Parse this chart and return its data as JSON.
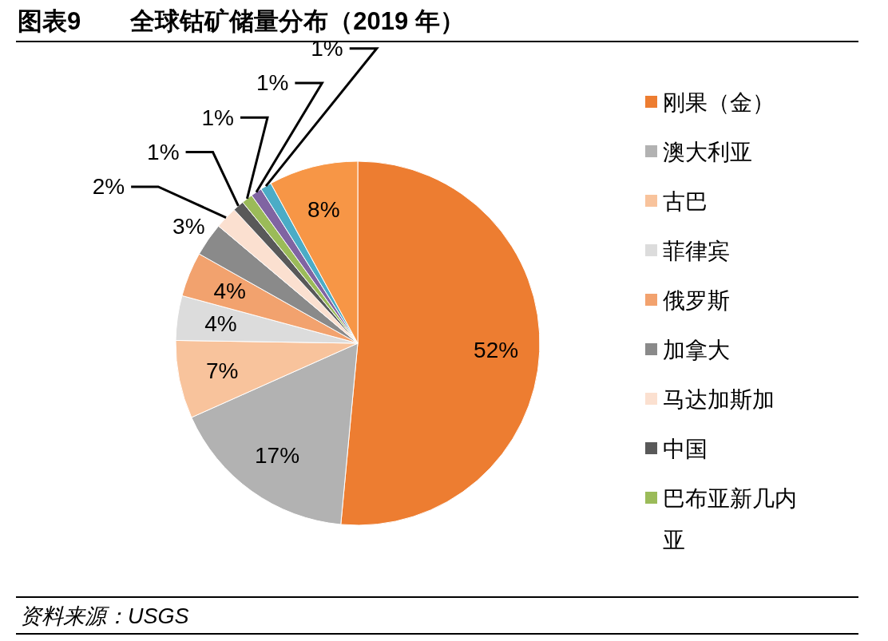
{
  "chart_data": {
    "type": "pie",
    "title": "图表9　　全球钴矿储量分布（2019 年）",
    "categories": [
      "刚果（金）",
      "澳大利亚",
      "古巴",
      "菲律宾",
      "俄罗斯",
      "加拿大",
      "马达加斯加",
      "中国",
      "巴布亚新几内亚",
      null,
      null,
      null
    ],
    "values": [
      52,
      17,
      7,
      4,
      4,
      3,
      2,
      1,
      1,
      1,
      1,
      8
    ],
    "value_labels": [
      "52%",
      "17%",
      "7%",
      "4%",
      "4%",
      "3%",
      "2%",
      "1%",
      "1%",
      "1%",
      "1%",
      "8%"
    ],
    "colors": [
      "#ed7d31",
      "#b2b2b2",
      "#f8c39c",
      "#dcdcdc",
      "#f2a26e",
      "#8a8a8a",
      "#fbe0d0",
      "#595959",
      "#9bbb59",
      "#8064a2",
      "#4bacc6",
      "#f79646"
    ],
    "legend": "right",
    "annotations": [
      "资料来源：USGS"
    ]
  }
}
